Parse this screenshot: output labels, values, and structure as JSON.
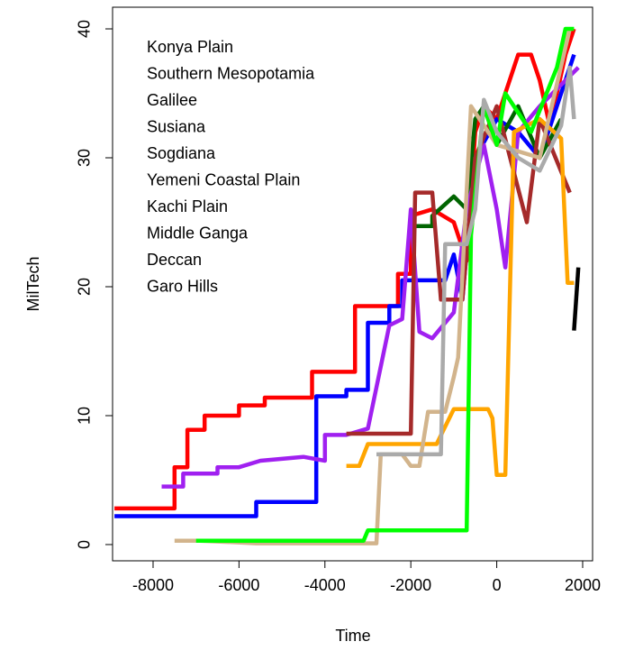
{
  "chart_data": {
    "type": "line",
    "x_label": "Time",
    "y_label": "MilTech",
    "xlim": [
      -8943,
      2231
    ],
    "xticks": [
      -8000,
      -6000,
      -4000,
      -2000,
      0,
      2000
    ],
    "ylim": [
      -1.26,
      41.68
    ],
    "yticks": [
      0,
      10,
      20,
      30,
      40
    ],
    "legend": "top-left",
    "series": [
      {
        "name": "Konya Plain",
        "color": "#ff0000",
        "x": [
          -8900,
          -7500,
          -7500,
          -7200,
          -7200,
          -6800,
          -6800,
          -6000,
          -6000,
          -5400,
          -5400,
          -4300,
          -4300,
          -3300,
          -3300,
          -2300,
          -2300,
          -2000,
          -2000,
          -1500,
          -1000,
          -700,
          -500,
          -300,
          0,
          200,
          500,
          800,
          1000,
          1200,
          1400,
          1600,
          1800
        ],
        "values": [
          2.8,
          2.8,
          6,
          6,
          8.9,
          8.9,
          10,
          10,
          10.8,
          10.8,
          11.4,
          11.4,
          13.4,
          13.4,
          18.5,
          18.5,
          21,
          21,
          25.5,
          26,
          25,
          22,
          32,
          34,
          33,
          35,
          38,
          38,
          36,
          33,
          35,
          38,
          40
        ]
      },
      {
        "name": "Southern Mesopotamia",
        "color": "#0000ff",
        "x": [
          -8900,
          -5600,
          -5600,
          -4200,
          -4200,
          -3500,
          -3500,
          -3000,
          -3000,
          -2500,
          -2500,
          -2200,
          -2200,
          -1200,
          -1000,
          -800,
          -500,
          0,
          500,
          1000,
          1500,
          1800
        ],
        "values": [
          2.2,
          2.2,
          3.3,
          3.3,
          11.5,
          11.5,
          12,
          12,
          17.2,
          17.2,
          18.5,
          18.5,
          20.5,
          20.5,
          22.5,
          19,
          30,
          33,
          32,
          30,
          35,
          38
        ]
      },
      {
        "name": "Galilee",
        "color": "#006400",
        "x": [
          -2000,
          -1500,
          -1500,
          -1000,
          -700,
          -500,
          -300,
          0,
          500,
          1000,
          1500
        ],
        "values": [
          24.7,
          24.7,
          25.5,
          27,
          26,
          33,
          34,
          31,
          34,
          30,
          33
        ]
      },
      {
        "name": "Susiana",
        "color": "#a020f0",
        "x": [
          -7800,
          -7300,
          -7300,
          -6500,
          -6500,
          -6000,
          -5500,
          -4500,
          -4000,
          -4000,
          -3500,
          -3000,
          -2500,
          -2200,
          -2000,
          -1800,
          -1500,
          -1000,
          -700,
          -300,
          0,
          200,
          500,
          1000,
          1900
        ],
        "values": [
          4.5,
          4.5,
          5.5,
          5.5,
          6,
          6,
          6.5,
          6.8,
          6.5,
          8.5,
          8.5,
          9,
          17,
          17.5,
          26,
          16.5,
          16,
          18,
          26,
          31,
          26,
          21.5,
          32,
          34,
          37
        ]
      },
      {
        "name": "Sogdiana",
        "color": "#a52a2a",
        "x": [
          -3500,
          -2000,
          -1900,
          -1500,
          -1300,
          -800,
          -500,
          0,
          700,
          1000,
          1700
        ],
        "values": [
          8.6,
          8.6,
          27.3,
          27.3,
          19,
          19,
          30,
          34,
          25,
          33,
          27.3
        ]
      },
      {
        "name": "Yemeni Coastal Plain",
        "color": "#ffa500",
        "x": [
          -3500,
          -3200,
          -3000,
          -1400,
          -1000,
          -200,
          -100,
          0,
          200,
          400,
          1000,
          1500,
          1650,
          1800
        ],
        "values": [
          6.1,
          6.1,
          7.8,
          7.8,
          10.5,
          10.5,
          9.8,
          5.4,
          5.4,
          32,
          33,
          31.5,
          20.3,
          20.3
        ]
      },
      {
        "name": "Kachi Plain",
        "color": "#d2b48c",
        "x": [
          -7500,
          -6900,
          -5600,
          -2800,
          -2700,
          -2200,
          -2000,
          -1800,
          -1600,
          -1200,
          -1000,
          -900,
          -600,
          0,
          1000,
          1700
        ],
        "values": [
          0.3,
          0.3,
          0.1,
          0.1,
          7,
          7,
          6.1,
          6.1,
          10.3,
          10.3,
          13,
          14.5,
          34,
          31,
          30,
          40
        ]
      },
      {
        "name": "Middle Ganga",
        "color": "#00ff00",
        "x": [
          -7000,
          -3100,
          -3000,
          -700,
          -600,
          -300,
          0,
          200,
          800,
          1400,
          1600,
          1800
        ],
        "values": [
          0.3,
          0.3,
          1.1,
          1.1,
          24,
          34,
          31,
          35,
          32,
          37,
          40,
          40
        ]
      },
      {
        "name": "Deccan",
        "color": "#aaaaaa",
        "x": [
          -2800,
          -1300,
          -1200,
          -700,
          -500,
          -300,
          0,
          500,
          1000,
          1500,
          1700,
          1800
        ],
        "values": [
          7,
          7,
          23.3,
          23.3,
          26,
          34.5,
          32,
          30,
          29,
          32.5,
          37,
          33
        ]
      },
      {
        "name": "Garo Hills",
        "color": "#000000",
        "x": [
          1800,
          1900
        ],
        "values": [
          16.6,
          21.5
        ]
      }
    ]
  }
}
